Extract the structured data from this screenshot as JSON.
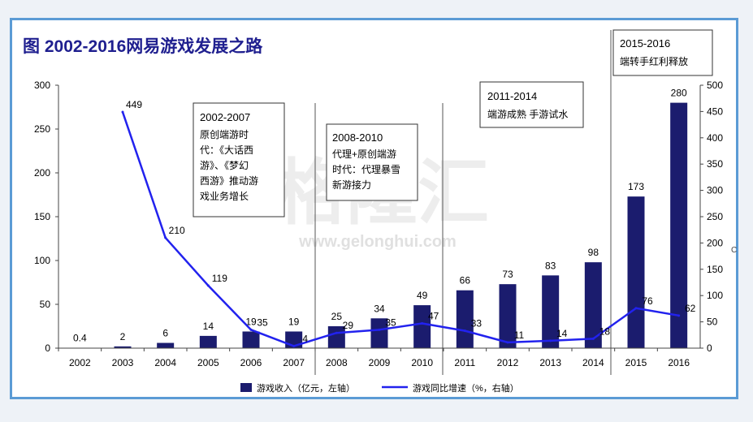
{
  "page": {
    "title": "图 2002-2016网易游戏发展之路",
    "watermark_cn": "格隆汇",
    "watermark_url": "www.gelonghui.com",
    "edge_mark": "C"
  },
  "colors": {
    "bar": "#1b1c6e",
    "line": "#2222ee",
    "frame": "#5b9bd5",
    "title": "#1f1f8f"
  },
  "eras": [
    {
      "heading": "2002-2007",
      "lines": [
        "原创端游时",
        "代：《大话西",
        "游》、《梦幻",
        "西游》推动游",
        "戏业务增长"
      ]
    },
    {
      "heading": "2008-2010",
      "lines": [
        "代理+原创端游",
        "时代：代理暴雪",
        "新游接力"
      ]
    },
    {
      "heading": "2011-2014",
      "lines": [
        "端游成熟 手游试水"
      ]
    },
    {
      "heading": "2015-2016",
      "lines": [
        "端转手红利释放"
      ]
    }
  ],
  "chart_data": {
    "type": "bar",
    "title": "",
    "categories": [
      "2002",
      "2003",
      "2004",
      "2005",
      "2006",
      "2007",
      "2008",
      "2009",
      "2010",
      "2011",
      "2012",
      "2013",
      "2014",
      "2015",
      "2016"
    ],
    "series": [
      {
        "name": "游戏收入（亿元，左轴）",
        "type": "bar",
        "axis": "left",
        "values": [
          0.4,
          2,
          6,
          14,
          19,
          19,
          25,
          34,
          49,
          66,
          73,
          83,
          98,
          173,
          280
        ],
        "labels": [
          "0.4",
          "2",
          "6",
          "14",
          "19",
          "19",
          "25",
          "34",
          "49",
          "66",
          "73",
          "83",
          "98",
          "173",
          "280"
        ]
      },
      {
        "name": "游戏同比增速（%，右轴）",
        "type": "line",
        "axis": "right",
        "values": [
          null,
          449,
          210,
          119,
          35,
          4,
          29,
          35,
          47,
          33,
          11,
          14,
          18,
          76,
          62
        ],
        "labels": [
          "",
          "449",
          "210",
          "119",
          "35",
          "4",
          "29",
          "35",
          "47",
          "33",
          "11",
          "14",
          "18",
          "76",
          "62"
        ]
      }
    ],
    "ylim_left": [
      0,
      300
    ],
    "yticks_left": [
      0,
      50,
      100,
      150,
      200,
      250,
      300
    ],
    "ylim_right": [
      0,
      500
    ],
    "yticks_right": [
      0,
      50,
      100,
      150,
      200,
      250,
      300,
      350,
      400,
      450,
      500
    ],
    "legend_position": "bottom-center",
    "grid": false
  }
}
